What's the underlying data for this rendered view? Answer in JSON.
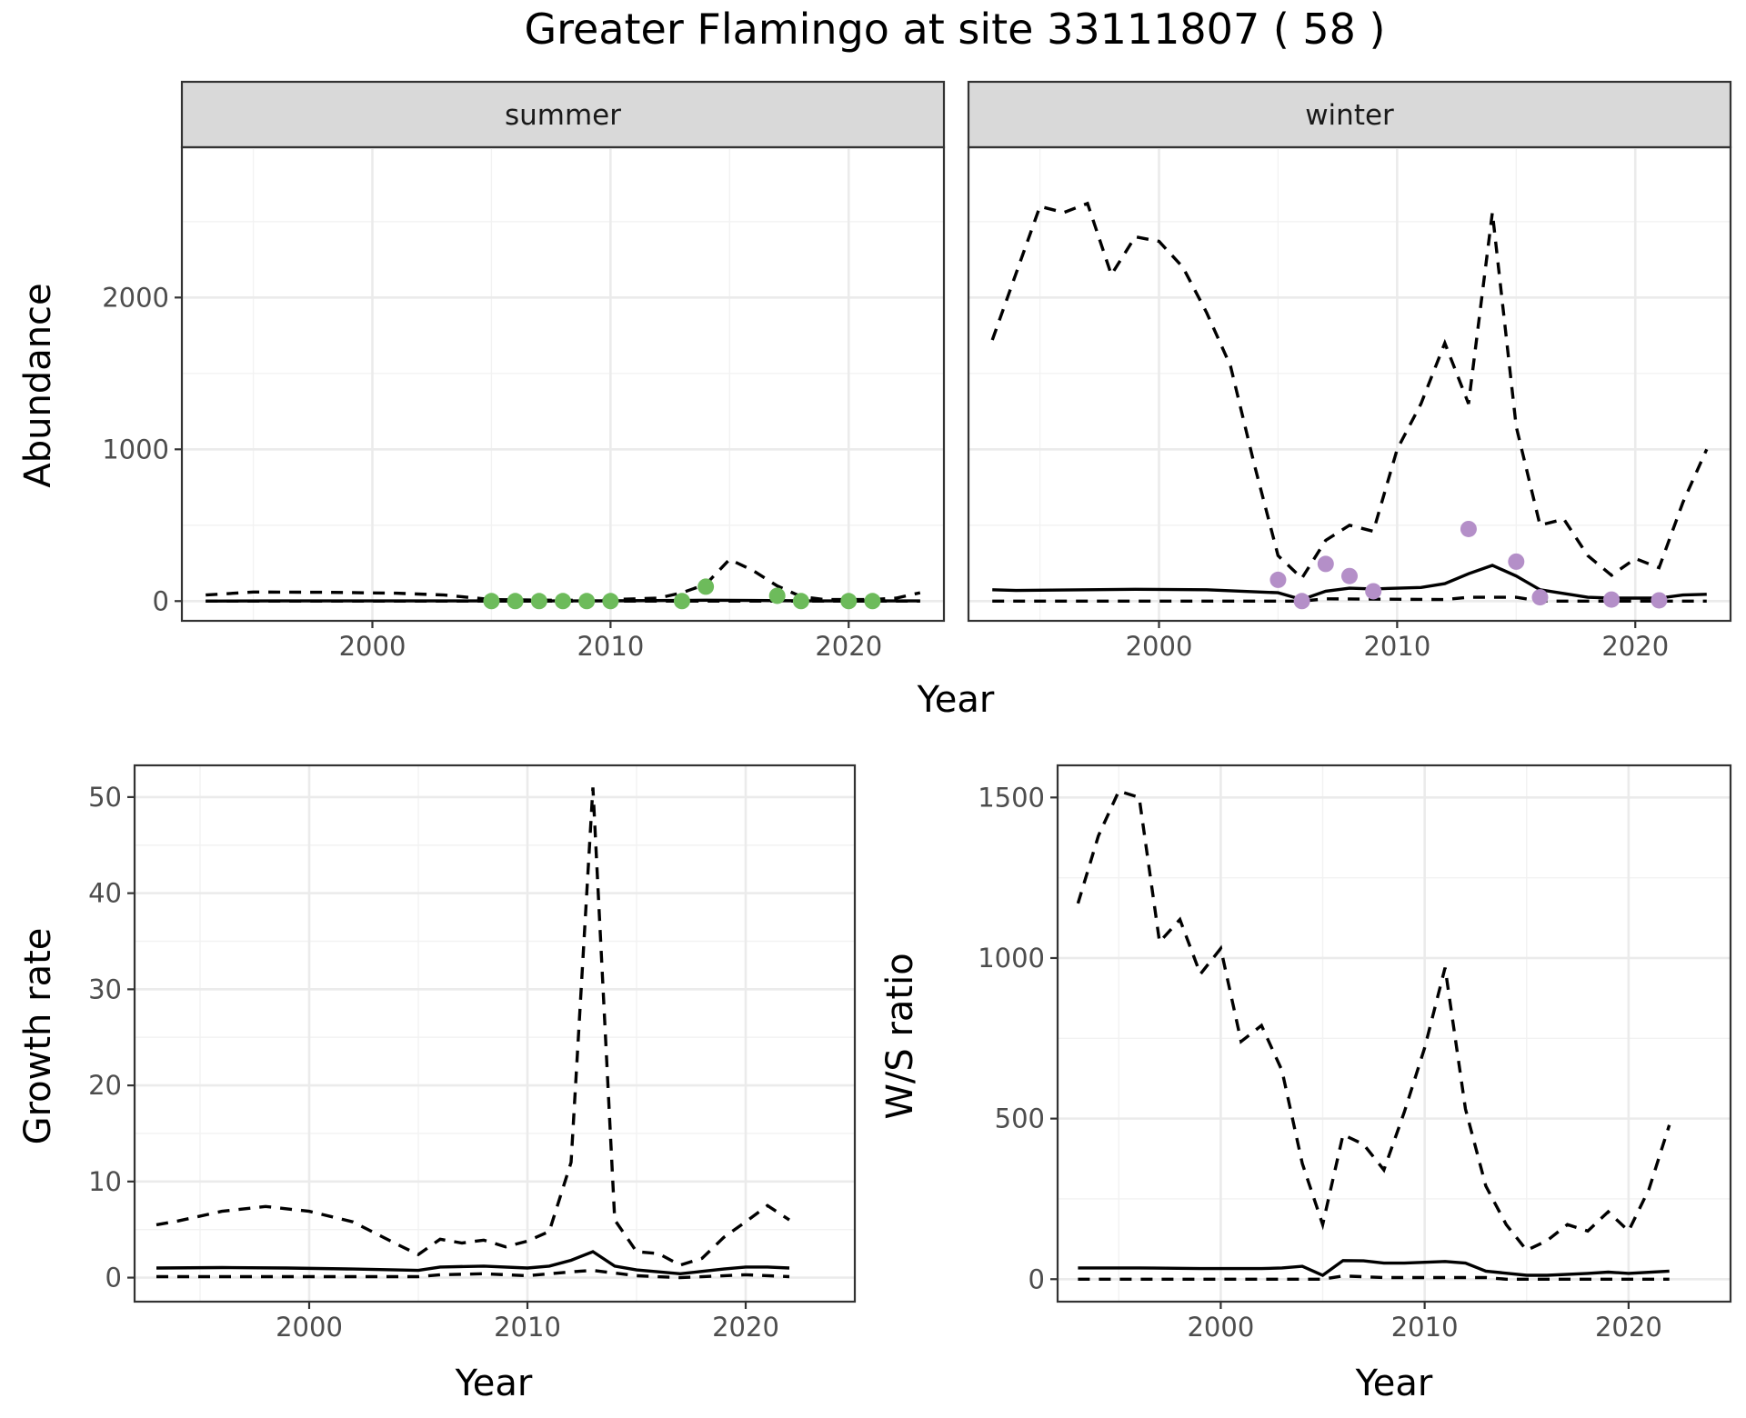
{
  "figure_title": "Greater Flamingo at site 33111807 ( 58 )",
  "chart_data": [
    {
      "type": "line",
      "panel": "summer",
      "strip_label": "summer",
      "xlabel": "Year",
      "ylabel": "Abundance",
      "xlim": [
        1992,
        2024
      ],
      "ylim": [
        -130,
        2990
      ],
      "xticks": [
        2000,
        2010,
        2020
      ],
      "yticks": [
        0,
        1000,
        2000
      ],
      "point_color": "#6dbb5b",
      "series": [
        {
          "role": "median",
          "style": "solid",
          "x": [
            1993,
            1996,
            2000,
            2004,
            2006,
            2010,
            2014,
            2016,
            2018,
            2020,
            2023
          ],
          "y": [
            0,
            1,
            1,
            1,
            1,
            2,
            6,
            4,
            2,
            1,
            1
          ]
        },
        {
          "role": "upper",
          "style": "dashed",
          "x": [
            1993,
            1995,
            1998,
            2001,
            2003,
            2005,
            2008,
            2010,
            2012,
            2013,
            2014,
            2015,
            2016,
            2017,
            2018,
            2019,
            2020,
            2021,
            2022,
            2023
          ],
          "y": [
            40,
            60,
            58,
            52,
            40,
            10,
            5,
            10,
            20,
            55,
            110,
            275,
            200,
            100,
            30,
            10,
            10,
            10,
            20,
            55
          ]
        },
        {
          "role": "lower",
          "style": "dashed",
          "x": [
            1993,
            2023
          ],
          "y": [
            0,
            0
          ]
        }
      ],
      "points": {
        "x": [
          2005,
          2006,
          2007,
          2008,
          2009,
          2010,
          2013,
          2014,
          2017,
          2018,
          2020,
          2021
        ],
        "y": [
          0,
          0,
          0,
          0,
          0,
          0,
          0,
          95,
          35,
          0,
          0,
          0
        ]
      }
    },
    {
      "type": "line",
      "panel": "winter",
      "strip_label": "winter",
      "xlabel": "Year",
      "ylabel": "Abundance",
      "xlim": [
        1992,
        2024
      ],
      "ylim": [
        -130,
        2990
      ],
      "xticks": [
        2000,
        2010,
        2020
      ],
      "yticks": [
        0,
        1000,
        2000
      ],
      "point_color": "#b48fc8",
      "series": [
        {
          "role": "median",
          "style": "solid",
          "x": [
            1993,
            1994,
            1996,
            1999,
            2002,
            2005,
            2006,
            2007,
            2008,
            2009,
            2011,
            2012,
            2013,
            2014,
            2015,
            2016,
            2017,
            2018,
            2019,
            2021,
            2022,
            2023
          ],
          "y": [
            75,
            70,
            73,
            78,
            75,
            55,
            10,
            65,
            85,
            80,
            90,
            115,
            180,
            235,
            165,
            75,
            50,
            25,
            20,
            20,
            40,
            45
          ]
        },
        {
          "role": "upper",
          "style": "dashed",
          "x": [
            1993,
            1995,
            1996,
            1997,
            1998,
            1999,
            2000,
            2001,
            2002,
            2003,
            2004,
            2005,
            2006,
            2007,
            2008,
            2009,
            2010,
            2011,
            2012,
            2013,
            2014,
            2015,
            2016,
            2017,
            2018,
            2019,
            2020,
            2021,
            2022,
            2023
          ],
          "y": [
            1720,
            2600,
            2560,
            2620,
            2150,
            2400,
            2370,
            2200,
            1900,
            1550,
            900,
            300,
            150,
            400,
            500,
            460,
            1000,
            1300,
            1700,
            1300,
            2560,
            1150,
            500,
            540,
            300,
            170,
            280,
            220,
            650,
            1000
          ]
        },
        {
          "role": "lower",
          "style": "dashed",
          "x": [
            1993,
            2006,
            2007,
            2012,
            2013,
            2015,
            2016,
            2023
          ],
          "y": [
            0,
            0,
            15,
            10,
            25,
            25,
            0,
            0
          ]
        }
      ],
      "points": {
        "x": [
          2005,
          2006,
          2007,
          2008,
          2009,
          2013,
          2015,
          2016,
          2019,
          2021
        ],
        "y": [
          140,
          0,
          245,
          165,
          65,
          475,
          260,
          25,
          10,
          5
        ]
      }
    },
    {
      "type": "line",
      "panel": "growth",
      "xlabel": "Year",
      "ylabel": "Growth rate",
      "xlim": [
        1992,
        2025
      ],
      "ylim": [
        -2.5,
        53.3
      ],
      "xticks": [
        2000,
        2010,
        2020
      ],
      "yticks": [
        0,
        10,
        20,
        30,
        40,
        50
      ],
      "series": [
        {
          "role": "median",
          "style": "solid",
          "x": [
            1993,
            1996,
            1999,
            2002,
            2005,
            2006,
            2008,
            2010,
            2011,
            2012,
            2013,
            2014,
            2015,
            2017,
            2019,
            2020,
            2021,
            2022
          ],
          "y": [
            1,
            1.05,
            1,
            0.9,
            0.75,
            1.1,
            1.2,
            1,
            1.2,
            1.8,
            2.7,
            1.2,
            0.8,
            0.4,
            0.9,
            1.1,
            1.1,
            1
          ],
          "note": "median"
        },
        {
          "role": "upper",
          "style": "dashed",
          "x": [
            1993,
            1994,
            1996,
            1998,
            2000,
            2002,
            2004,
            2005,
            2006,
            2007,
            2008,
            2009,
            2010,
            2011,
            2012,
            2013,
            2014,
            2015,
            2016,
            2017,
            2018,
            2019,
            2020,
            2021,
            2022
          ],
          "y": [
            5.5,
            5.9,
            6.9,
            7.4,
            6.9,
            5.8,
            3.5,
            2.4,
            4,
            3.6,
            3.9,
            3.2,
            3.8,
            4.8,
            12,
            51,
            6,
            2.7,
            2.5,
            1.3,
            2,
            4.2,
            5.8,
            7.5,
            6
          ]
        },
        {
          "role": "lower",
          "style": "dashed",
          "x": [
            1993,
            2005,
            2006,
            2008,
            2010,
            2012,
            2013,
            2015,
            2017,
            2020,
            2022
          ],
          "y": [
            0.1,
            0.1,
            0.3,
            0.4,
            0.2,
            0.6,
            0.75,
            0.2,
            0,
            0.3,
            0.1
          ]
        }
      ]
    },
    {
      "type": "line",
      "panel": "ratio",
      "xlabel": "Year",
      "ylabel": "W/S ratio",
      "xlim": [
        1992,
        2025
      ],
      "ylim": [
        -70,
        1600
      ],
      "xticks": [
        2000,
        2010,
        2020
      ],
      "yticks": [
        0,
        500,
        1000,
        1500
      ],
      "series": [
        {
          "role": "median",
          "style": "solid",
          "x": [
            1993,
            1996,
            1999,
            2002,
            2003,
            2004,
            2005,
            2006,
            2007,
            2008,
            2009,
            2011,
            2012,
            2013,
            2015,
            2016,
            2018,
            2019,
            2020,
            2022
          ],
          "y": [
            35,
            35,
            33,
            33,
            35,
            40,
            12,
            58,
            57,
            50,
            50,
            55,
            50,
            25,
            12,
            12,
            18,
            22,
            18,
            25
          ]
        },
        {
          "role": "upper",
          "style": "dashed",
          "x": [
            1993,
            1994,
            1995,
            1996,
            1997,
            1998,
            1999,
            2000,
            2001,
            2002,
            2003,
            2004,
            2005,
            2006,
            2007,
            2008,
            2009,
            2010,
            2011,
            2012,
            2013,
            2014,
            2015,
            2016,
            2017,
            2018,
            2019,
            2020,
            2021,
            2022
          ],
          "y": [
            1170,
            1380,
            1520,
            1500,
            1050,
            1120,
            950,
            1030,
            740,
            790,
            650,
            360,
            170,
            450,
            420,
            340,
            520,
            720,
            970,
            530,
            290,
            170,
            90,
            120,
            170,
            150,
            210,
            150,
            280,
            480
          ]
        },
        {
          "role": "lower",
          "style": "dashed",
          "x": [
            1993,
            2005,
            2006,
            2008,
            2009,
            2013,
            2014,
            2022
          ],
          "y": [
            0,
            0,
            10,
            5,
            5,
            5,
            0,
            0
          ]
        }
      ]
    }
  ]
}
